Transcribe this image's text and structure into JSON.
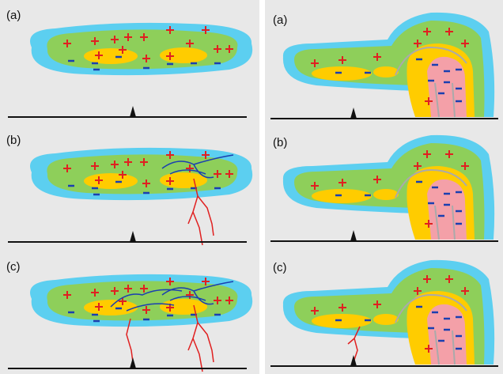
{
  "left_panels": [
    {
      "label": "(a)"
    },
    {
      "label": "(b)"
    },
    {
      "label": "(c)"
    }
  ],
  "right_panels": [
    {
      "label": "(a)"
    },
    {
      "label": "(b)"
    },
    {
      "label": "(c)"
    }
  ]
}
